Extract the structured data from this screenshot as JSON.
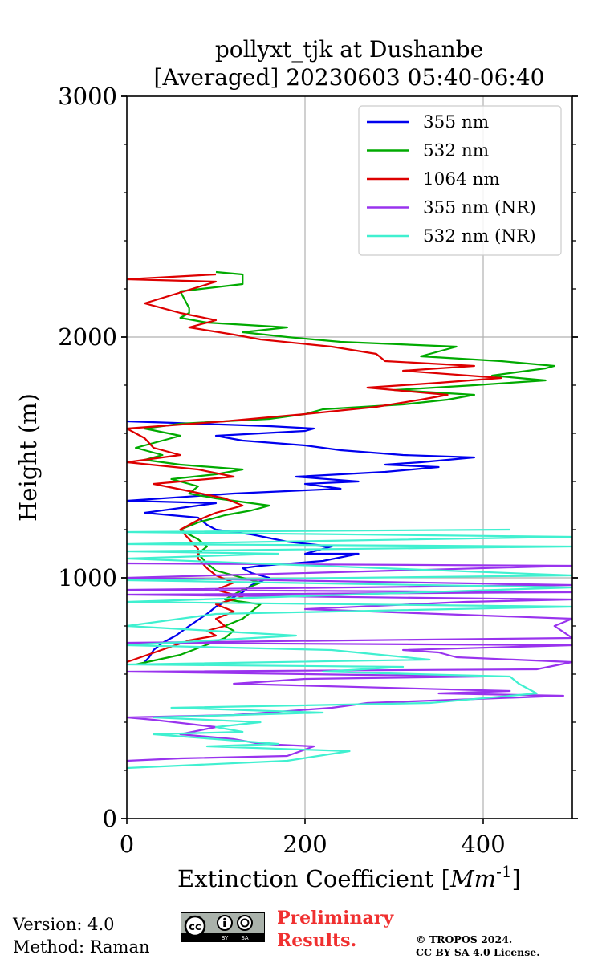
{
  "chart_data": {
    "type": "line",
    "title": "pollyxt_tjk at Dushanbe",
    "subtitle": "[Averaged] 20230603 05:40-06:40",
    "xlabel": "Extinction Coefficient [Mm^-1]",
    "ylabel": "Height (m)",
    "xlim": [
      0,
      500
    ],
    "ylim": [
      0,
      3000
    ],
    "xticks": [
      0,
      200,
      400
    ],
    "yticks": [
      0,
      1000,
      2000,
      3000
    ],
    "grid": true,
    "legend_position": "top-right",
    "series": [
      {
        "name": "355 nm",
        "color": "#0000ee",
        "points": [
          [
            20,
            650
          ],
          [
            25,
            670
          ],
          [
            30,
            700
          ],
          [
            40,
            730
          ],
          [
            55,
            760
          ],
          [
            70,
            800
          ],
          [
            90,
            850
          ],
          [
            100,
            880
          ],
          [
            110,
            900
          ],
          [
            130,
            940
          ],
          [
            140,
            970
          ],
          [
            160,
            1000
          ],
          [
            140,
            1020
          ],
          [
            130,
            1040
          ],
          [
            150,
            1050
          ],
          [
            220,
            1070
          ],
          [
            260,
            1100
          ],
          [
            200,
            1100
          ],
          [
            230,
            1130
          ],
          [
            180,
            1150
          ],
          [
            140,
            1180
          ],
          [
            100,
            1200
          ],
          [
            90,
            1220
          ],
          [
            80,
            1250
          ],
          [
            20,
            1270
          ],
          [
            60,
            1290
          ],
          [
            100,
            1310
          ],
          [
            0,
            1320
          ],
          [
            120,
            1350
          ],
          [
            240,
            1370
          ],
          [
            200,
            1390
          ],
          [
            260,
            1400
          ],
          [
            190,
            1420
          ],
          [
            290,
            1440
          ],
          [
            350,
            1460
          ],
          [
            290,
            1470
          ],
          [
            330,
            1480
          ],
          [
            390,
            1500
          ],
          [
            310,
            1510
          ],
          [
            240,
            1530
          ],
          [
            200,
            1550
          ],
          [
            130,
            1570
          ],
          [
            100,
            1590
          ],
          [
            200,
            1610
          ],
          [
            210,
            1620
          ],
          [
            160,
            1630
          ],
          [
            0,
            1650
          ]
        ]
      },
      {
        "name": "532 nm",
        "color": "#00aa00",
        "points": [
          [
            10,
            640
          ],
          [
            60,
            680
          ],
          [
            110,
            750
          ],
          [
            120,
            780
          ],
          [
            110,
            800
          ],
          [
            130,
            830
          ],
          [
            140,
            860
          ],
          [
            150,
            890
          ],
          [
            110,
            910
          ],
          [
            130,
            950
          ],
          [
            150,
            980
          ],
          [
            120,
            1010
          ],
          [
            100,
            1030
          ],
          [
            90,
            1060
          ],
          [
            80,
            1100
          ],
          [
            90,
            1130
          ],
          [
            80,
            1160
          ],
          [
            70,
            1180
          ],
          [
            60,
            1200
          ],
          [
            80,
            1230
          ],
          [
            110,
            1260
          ],
          [
            140,
            1280
          ],
          [
            160,
            1300
          ],
          [
            100,
            1330
          ],
          [
            70,
            1350
          ],
          [
            80,
            1380
          ],
          [
            50,
            1410
          ],
          [
            100,
            1430
          ],
          [
            130,
            1450
          ],
          [
            60,
            1470
          ],
          [
            20,
            1490
          ],
          [
            40,
            1510
          ],
          [
            10,
            1540
          ],
          [
            40,
            1570
          ],
          [
            60,
            1590
          ],
          [
            20,
            1620
          ],
          [
            60,
            1640
          ],
          [
            160,
            1660
          ],
          [
            200,
            1680
          ],
          [
            220,
            1700
          ],
          [
            310,
            1720
          ],
          [
            360,
            1740
          ],
          [
            390,
            1760
          ],
          [
            300,
            1780
          ],
          [
            390,
            1800
          ],
          [
            470,
            1820
          ],
          [
            410,
            1840
          ],
          [
            470,
            1870
          ],
          [
            480,
            1880
          ],
          [
            420,
            1900
          ],
          [
            330,
            1920
          ],
          [
            350,
            1940
          ],
          [
            370,
            1960
          ],
          [
            240,
            1980
          ],
          [
            180,
            2000
          ],
          [
            130,
            2020
          ],
          [
            180,
            2040
          ],
          [
            90,
            2060
          ],
          [
            60,
            2080
          ],
          [
            70,
            2100
          ],
          [
            70,
            2120
          ],
          [
            60,
            2190
          ],
          [
            130,
            2220
          ],
          [
            130,
            2260
          ],
          [
            100,
            2270
          ]
        ]
      },
      {
        "name": "1064 nm",
        "color": "#dd0000",
        "points": [
          [
            0,
            650
          ],
          [
            70,
            740
          ],
          [
            100,
            760
          ],
          [
            90,
            780
          ],
          [
            110,
            800
          ],
          [
            100,
            830
          ],
          [
            120,
            860
          ],
          [
            100,
            890
          ],
          [
            130,
            920
          ],
          [
            100,
            950
          ],
          [
            120,
            980
          ],
          [
            100,
            1010
          ],
          [
            90,
            1040
          ],
          [
            80,
            1080
          ],
          [
            80,
            1120
          ],
          [
            70,
            1160
          ],
          [
            60,
            1200
          ],
          [
            80,
            1240
          ],
          [
            100,
            1270
          ],
          [
            130,
            1300
          ],
          [
            110,
            1330
          ],
          [
            70,
            1360
          ],
          [
            30,
            1390
          ],
          [
            120,
            1420
          ],
          [
            80,
            1450
          ],
          [
            0,
            1480
          ],
          [
            60,
            1510
          ],
          [
            30,
            1540
          ],
          [
            20,
            1580
          ],
          [
            0,
            1620
          ],
          [
            110,
            1650
          ],
          [
            200,
            1680
          ],
          [
            280,
            1710
          ],
          [
            330,
            1740
          ],
          [
            360,
            1760
          ],
          [
            270,
            1790
          ],
          [
            350,
            1810
          ],
          [
            420,
            1830
          ],
          [
            310,
            1860
          ],
          [
            390,
            1880
          ],
          [
            290,
            1900
          ],
          [
            280,
            1930
          ],
          [
            230,
            1960
          ],
          [
            150,
            1990
          ],
          [
            120,
            2010
          ],
          [
            70,
            2040
          ],
          [
            100,
            2070
          ],
          [
            60,
            2100
          ],
          [
            20,
            2140
          ],
          [
            100,
            2230
          ],
          [
            0,
            2240
          ],
          [
            100,
            2260
          ]
        ]
      },
      {
        "name": "355 nm (NR)",
        "color": "#9933ee",
        "points": [
          [
            0,
            240
          ],
          [
            60,
            250
          ],
          [
            180,
            260
          ],
          [
            210,
            300
          ],
          [
            150,
            310
          ],
          [
            120,
            330
          ],
          [
            60,
            350
          ],
          [
            100,
            380
          ],
          [
            30,
            410
          ],
          [
            0,
            420
          ],
          [
            120,
            430
          ],
          [
            230,
            460
          ],
          [
            270,
            480
          ],
          [
            490,
            510
          ],
          [
            350,
            520
          ],
          [
            430,
            530
          ],
          [
            120,
            560
          ],
          [
            200,
            580
          ],
          [
            400,
            590
          ],
          [
            0,
            610
          ],
          [
            460,
            620
          ],
          [
            500,
            650
          ],
          [
            370,
            670
          ],
          [
            350,
            690
          ],
          [
            310,
            700
          ],
          [
            500,
            720
          ],
          [
            0,
            730
          ],
          [
            500,
            750
          ],
          [
            480,
            800
          ],
          [
            500,
            830
          ],
          [
            200,
            870
          ],
          [
            380,
            900
          ],
          [
            500,
            910
          ],
          [
            0,
            930
          ],
          [
            500,
            940
          ],
          [
            0,
            950
          ],
          [
            500,
            970
          ],
          [
            0,
            1000
          ],
          [
            500,
            1050
          ],
          [
            0,
            1060
          ]
        ]
      },
      {
        "name": "532 nm (NR)",
        "color": "#40f0d0",
        "points": [
          [
            0,
            210
          ],
          [
            180,
            240
          ],
          [
            250,
            280
          ],
          [
            90,
            300
          ],
          [
            170,
            310
          ],
          [
            30,
            350
          ],
          [
            130,
            360
          ],
          [
            100,
            380
          ],
          [
            150,
            400
          ],
          [
            30,
            420
          ],
          [
            220,
            440
          ],
          [
            50,
            460
          ],
          [
            340,
            480
          ],
          [
            460,
            520
          ],
          [
            440,
            560
          ],
          [
            430,
            590
          ],
          [
            220,
            610
          ],
          [
            310,
            630
          ],
          [
            0,
            640
          ],
          [
            340,
            660
          ],
          [
            230,
            700
          ],
          [
            0,
            720
          ],
          [
            190,
            760
          ],
          [
            0,
            800
          ],
          [
            100,
            850
          ],
          [
            500,
            880
          ],
          [
            0,
            900
          ],
          [
            500,
            960
          ],
          [
            0,
            990
          ],
          [
            500,
            1010
          ],
          [
            0,
            1080
          ],
          [
            170,
            1100
          ],
          [
            0,
            1110
          ],
          [
            500,
            1130
          ],
          [
            0,
            1140
          ],
          [
            500,
            1170
          ],
          [
            0,
            1190
          ],
          [
            430,
            1200
          ]
        ]
      }
    ]
  },
  "footer": {
    "version": "Version: 4.0",
    "method": "Method: Raman",
    "preliminary_line1": "Preliminary",
    "preliminary_line2": "Results.",
    "copyright_line1": "© TROPOS 2024.",
    "copyright_line2": "CC BY SA 4.0 License.",
    "badge_cc": "cc",
    "badge_by": "BY",
    "badge_sa": "SA"
  }
}
